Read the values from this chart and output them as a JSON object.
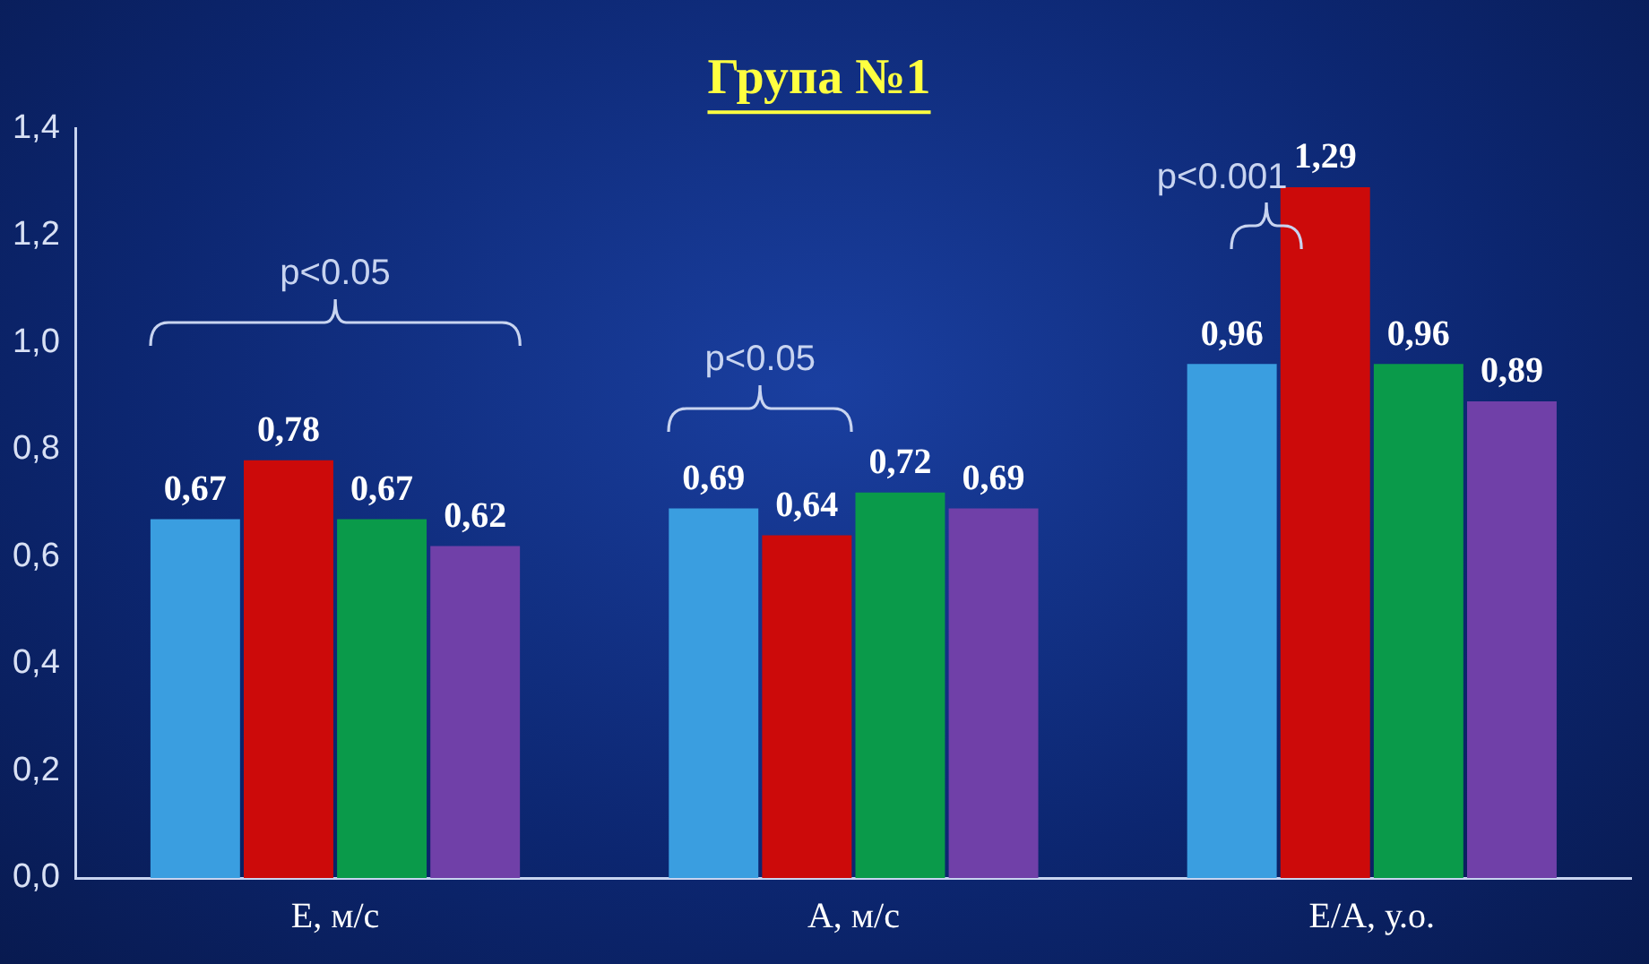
{
  "chart_data": {
    "type": "bar",
    "title": "Група №1",
    "categories": [
      "Е, м/с",
      "А, м/с",
      "Е/А, у.о."
    ],
    "series": [
      {
        "color": "#3a9ee0",
        "values": [
          0.67,
          0.69,
          0.96
        ],
        "value_labels": [
          "0,67",
          "0,69",
          "0,96"
        ]
      },
      {
        "color": "#cc0a0a",
        "values": [
          0.78,
          0.64,
          1.29
        ],
        "value_labels": [
          "0,78",
          "0,64",
          "1,29"
        ]
      },
      {
        "color": "#0a9a4a",
        "values": [
          0.67,
          0.72,
          0.96
        ],
        "value_labels": [
          "0,67",
          "0,72",
          "0,96"
        ]
      },
      {
        "color": "#7040a8",
        "values": [
          0.62,
          0.69,
          0.89
        ],
        "value_labels": [
          "0,62",
          "0,69",
          "0,89"
        ]
      }
    ],
    "ylim": [
      0,
      1.4
    ],
    "yticks": [
      {
        "value": 0,
        "label": "0,0"
      },
      {
        "value": 0.2,
        "label": "0,2"
      },
      {
        "value": 0.4,
        "label": "0,4"
      },
      {
        "value": 0.6,
        "label": "0,6"
      },
      {
        "value": 0.8,
        "label": "0,8"
      },
      {
        "value": 1.0,
        "label": "1,0"
      },
      {
        "value": 1.2,
        "label": "1,2"
      },
      {
        "value": 1.4,
        "label": "1,4"
      }
    ],
    "grid": false,
    "legend": false,
    "annotations": [
      "p<0.05",
      "p<0.05",
      "p<0.001"
    ]
  }
}
